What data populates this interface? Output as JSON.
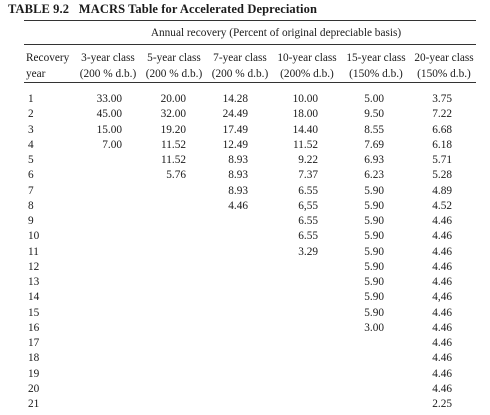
{
  "caption": {
    "label": "TABLE 9.2",
    "title": "MACRS Table for Accelerated Depreciation"
  },
  "spanner": "Annual recovery (Percent of original depreciable basis)",
  "columns": [
    {
      "line1": "Recovery",
      "line2": "year"
    },
    {
      "line1": "3-year class",
      "line2": "(200 % d.b.)"
    },
    {
      "line1": "5-year class",
      "line2": "(200 % d.b.)"
    },
    {
      "line1": "7-year class",
      "line2": "(200 % d.b.)"
    },
    {
      "line1": "10-year class",
      "line2": "(200% d.b.)"
    },
    {
      "line1": "15-year class",
      "line2": "(150% d.b.)"
    },
    {
      "line1": "20-year class",
      "line2": "(150% d.b.)"
    }
  ],
  "rows": [
    {
      "year": "1",
      "c3": "33.00",
      "c5": "20.00",
      "c7": "14.28",
      "c10": "10.00",
      "c15": "5.00",
      "c20": "3.75"
    },
    {
      "year": "2",
      "c3": "45.00",
      "c5": "32.00",
      "c7": "24.49",
      "c10": "18.00",
      "c15": "9.50",
      "c20": "7.22"
    },
    {
      "year": "3",
      "c3": "15.00",
      "c5": "19.20",
      "c7": "17.49",
      "c10": "14.40",
      "c15": "8.55",
      "c20": "6.68"
    },
    {
      "year": "4",
      "c3": "7.00",
      "c5": "11.52",
      "c7": "12.49",
      "c10": "11.52",
      "c15": "7.69",
      "c20": "6.18"
    },
    {
      "year": "5",
      "c3": "",
      "c5": "11.52",
      "c7": "8.93",
      "c10": "9.22",
      "c15": "6.93",
      "c20": "5.71"
    },
    {
      "year": "6",
      "c3": "",
      "c5": "5.76",
      "c7": "8.93",
      "c10": "7.37",
      "c15": "6.23",
      "c20": "5.28"
    },
    {
      "year": "7",
      "c3": "",
      "c5": "",
      "c7": "8.93",
      "c10": "6.55",
      "c15": "5.90",
      "c20": "4.89"
    },
    {
      "year": "8",
      "c3": "",
      "c5": "",
      "c7": "4.46",
      "c10": "6,55",
      "c15": "5.90",
      "c20": "4.52"
    },
    {
      "year": "9",
      "c3": "",
      "c5": "",
      "c7": "",
      "c10": "6.55",
      "c15": "5.90",
      "c20": "4.46"
    },
    {
      "year": "10",
      "c3": "",
      "c5": "",
      "c7": "",
      "c10": "6.55",
      "c15": "5.90",
      "c20": "4.46"
    },
    {
      "year": "11",
      "c3": "",
      "c5": "",
      "c7": "",
      "c10": "3.29",
      "c15": "5.90",
      "c20": "4.46"
    },
    {
      "year": "12",
      "c3": "",
      "c5": "",
      "c7": "",
      "c10": "",
      "c15": "5.90",
      "c20": "4.46"
    },
    {
      "year": "13",
      "c3": "",
      "c5": "",
      "c7": "",
      "c10": "",
      "c15": "5.90",
      "c20": "4.46"
    },
    {
      "year": "14",
      "c3": "",
      "c5": "",
      "c7": "",
      "c10": "",
      "c15": "5.90",
      "c20": "4,46"
    },
    {
      "year": "15",
      "c3": "",
      "c5": "",
      "c7": "",
      "c10": "",
      "c15": "5.90",
      "c20": "4.46"
    },
    {
      "year": "16",
      "c3": "",
      "c5": "",
      "c7": "",
      "c10": "",
      "c15": "3.00",
      "c20": "4.46"
    },
    {
      "year": "17",
      "c3": "",
      "c5": "",
      "c7": "",
      "c10": "",
      "c15": "",
      "c20": "4.46"
    },
    {
      "year": "18",
      "c3": "",
      "c5": "",
      "c7": "",
      "c10": "",
      "c15": "",
      "c20": "4.46"
    },
    {
      "year": "19",
      "c3": "",
      "c5": "",
      "c7": "",
      "c10": "",
      "c15": "",
      "c20": "4.46"
    },
    {
      "year": "20",
      "c3": "",
      "c5": "",
      "c7": "",
      "c10": "",
      "c15": "",
      "c20": "4.46"
    },
    {
      "year": "21",
      "c3": "",
      "c5": "",
      "c7": "",
      "c10": "",
      "c15": "",
      "c20": "2.25"
    }
  ]
}
